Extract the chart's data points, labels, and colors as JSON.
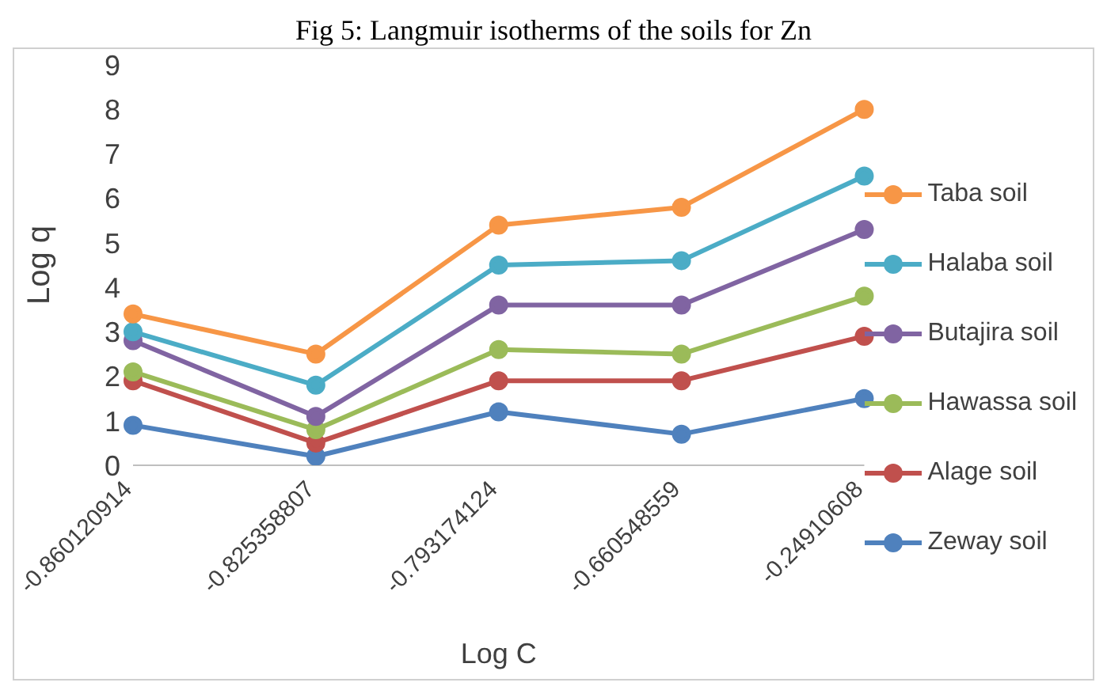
{
  "chart_data": {
    "type": "line",
    "title": "Fig 5: Langmuir isotherms of the soils for Zn",
    "xlabel": "Log C",
    "ylabel": "Log q",
    "categories": [
      "-0.860120914",
      "-0.825358807",
      "-0.793174124",
      "-0.660548559",
      "-0.24910608"
    ],
    "series": [
      {
        "name": "Taba soil",
        "color": "#f79646",
        "values": [
          3.4,
          2.5,
          5.4,
          5.8,
          8.0
        ]
      },
      {
        "name": "Halaba soil",
        "color": "#4bacc6",
        "values": [
          3.0,
          1.8,
          4.5,
          4.6,
          6.5
        ]
      },
      {
        "name": "Butajira soil",
        "color": "#8064a2",
        "values": [
          2.8,
          1.1,
          3.6,
          3.6,
          5.3
        ]
      },
      {
        "name": "Hawassa soil",
        "color": "#9bbb59",
        "values": [
          2.1,
          0.8,
          2.6,
          2.5,
          3.8
        ]
      },
      {
        "name": "Alage soil",
        "color": "#c0504d",
        "values": [
          1.9,
          0.5,
          1.9,
          1.9,
          2.9
        ]
      },
      {
        "name": "Zeway soil",
        "color": "#4f81bd",
        "values": [
          0.9,
          0.2,
          1.2,
          0.7,
          1.5
        ]
      }
    ],
    "ylim": [
      0,
      9
    ],
    "yticks": [
      0,
      1,
      2,
      3,
      4,
      5,
      6,
      7,
      8,
      9
    ],
    "grid": false,
    "legend": "right",
    "marker": "circle",
    "line_style": "solid"
  }
}
